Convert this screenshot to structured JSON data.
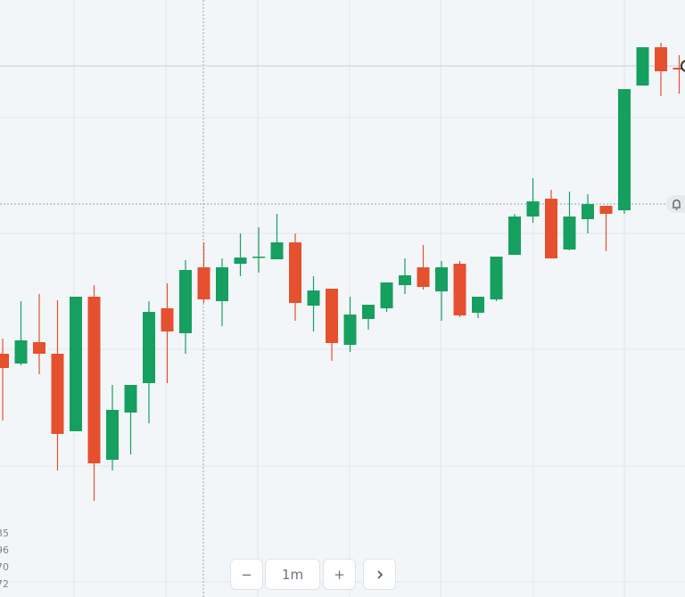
{
  "chart_data": {
    "type": "candlestick",
    "up_color": "#16a05f",
    "down_color": "#e5502f",
    "ylim": [
      0,
      670
    ],
    "candles": [
      {
        "open": 273,
        "high": 290,
        "low": 198,
        "close": 257
      },
      {
        "open": 262,
        "high": 332,
        "low": 260,
        "close": 288
      },
      {
        "open": 286,
        "high": 340,
        "low": 250,
        "close": 273
      },
      {
        "open": 273,
        "high": 333,
        "low": 142,
        "close": 183
      },
      {
        "open": 186,
        "high": 337,
        "low": 186,
        "close": 337
      },
      {
        "open": 337,
        "high": 350,
        "low": 108,
        "close": 150
      },
      {
        "open": 154,
        "high": 238,
        "low": 142,
        "close": 210
      },
      {
        "open": 207,
        "high": 238,
        "low": 160,
        "close": 238
      },
      {
        "open": 240,
        "high": 332,
        "low": 195,
        "close": 320
      },
      {
        "open": 324,
        "high": 352,
        "low": 240,
        "close": 298
      },
      {
        "open": 296,
        "high": 378,
        "low": 273,
        "close": 367
      },
      {
        "open": 370,
        "high": 398,
        "low": 330,
        "close": 334
      },
      {
        "open": 332,
        "high": 380,
        "low": 304,
        "close": 370
      },
      {
        "open": 374,
        "high": 408,
        "low": 360,
        "close": 381
      },
      {
        "open": 381,
        "high": 415,
        "low": 364,
        "close": 382
      },
      {
        "open": 379,
        "high": 430,
        "low": 379,
        "close": 398
      },
      {
        "open": 398,
        "high": 408,
        "low": 310,
        "close": 330
      },
      {
        "open": 327,
        "high": 360,
        "low": 298,
        "close": 344
      },
      {
        "open": 346,
        "high": 346,
        "low": 265,
        "close": 285
      },
      {
        "open": 283,
        "high": 337,
        "low": 275,
        "close": 317
      },
      {
        "open": 312,
        "high": 328,
        "low": 300,
        "close": 328
      },
      {
        "open": 324,
        "high": 353,
        "low": 320,
        "close": 353
      },
      {
        "open": 350,
        "high": 380,
        "low": 340,
        "close": 361
      },
      {
        "open": 370,
        "high": 395,
        "low": 345,
        "close": 348
      },
      {
        "open": 343,
        "high": 377,
        "low": 310,
        "close": 370
      },
      {
        "open": 374,
        "high": 377,
        "low": 314,
        "close": 316
      },
      {
        "open": 319,
        "high": 337,
        "low": 313,
        "close": 337
      },
      {
        "open": 334,
        "high": 382,
        "low": 332,
        "close": 382
      },
      {
        "open": 384,
        "high": 430,
        "low": 384,
        "close": 427
      },
      {
        "open": 427,
        "high": 470,
        "low": 420,
        "close": 444
      },
      {
        "open": 447,
        "high": 457,
        "low": 380,
        "close": 380
      },
      {
        "open": 390,
        "high": 455,
        "low": 389,
        "close": 427
      },
      {
        "open": 424,
        "high": 452,
        "low": 408,
        "close": 441
      },
      {
        "open": 439,
        "high": 439,
        "low": 388,
        "close": 430
      },
      {
        "open": 434,
        "high": 570,
        "low": 430,
        "close": 570
      },
      {
        "open": 574,
        "high": 617,
        "low": 574,
        "close": 617
      },
      {
        "open": 617,
        "high": 622,
        "low": 562,
        "close": 590
      },
      {
        "open": 594,
        "high": 608,
        "low": 565,
        "close": 592
      }
    ]
  },
  "side_labels": [
    "35",
    "96",
    "70",
    "72"
  ],
  "controls": {
    "minus": "−",
    "interval": "1m",
    "plus": "+"
  }
}
